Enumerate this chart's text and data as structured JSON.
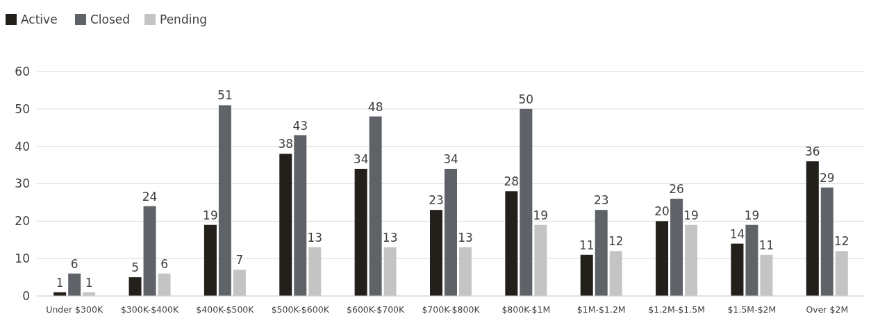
{
  "chart_data": {
    "type": "bar",
    "categories": [
      "Under $300K",
      "$300K-$400K",
      "$400K-$500K",
      "$500K-$600K",
      "$600K-$700K",
      "$700K-$800K",
      "$800K-$1M",
      "$1M-$1.2M",
      "$1.2M-$1.5M",
      "$1.5M-$2M",
      "Over $2M"
    ],
    "series": [
      {
        "name": "Active",
        "color": "#231f1a",
        "values": [
          1,
          5,
          19,
          38,
          34,
          23,
          28,
          11,
          20,
          14,
          36
        ]
      },
      {
        "name": "Closed",
        "color": "#5f6368",
        "values": [
          6,
          24,
          51,
          43,
          48,
          34,
          50,
          23,
          26,
          19,
          29
        ]
      },
      {
        "name": "Pending",
        "color": "#c4c4c4",
        "values": [
          1,
          6,
          7,
          13,
          13,
          13,
          19,
          12,
          19,
          11,
          12
        ]
      }
    ],
    "ylim": [
      0,
      60
    ],
    "yticks": [
      0,
      10,
      20,
      30,
      40,
      50,
      60
    ],
    "grid": "y",
    "legend": "top left",
    "data_labels": true
  }
}
